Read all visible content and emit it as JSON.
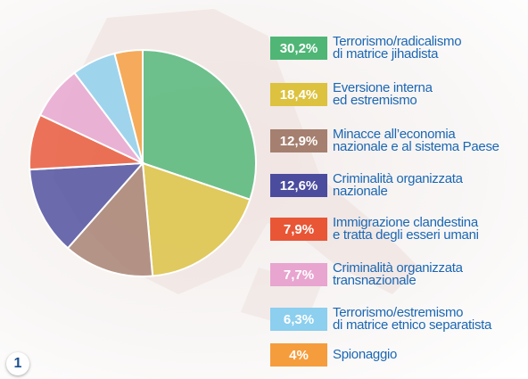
{
  "chart_data": {
    "type": "pie",
    "categories": [
      "Terrorismo/radicalismo\ndi matrice jihadista",
      "Eversione interna\ned estremismo",
      "Minacce all’economia\nnazionale e al sistema Paese",
      "Criminalità organizzata\nnazionale",
      "Immigrazione clandestina\ne tratta degli esseri umani",
      "Criminalità organizzata\ntransnazionale",
      "Terrorismo/estremismo\ndi matrice etnico separatista",
      "Spionaggio"
    ],
    "values": [
      30.2,
      18.4,
      12.9,
      12.6,
      7.9,
      7.7,
      6.3,
      4
    ],
    "value_labels": [
      "30,2%",
      "18,4%",
      "12,9%",
      "12,6%",
      "7,9%",
      "7,7%",
      "6,3%",
      "4%"
    ],
    "colors": [
      "#4fb676",
      "#dcc23f",
      "#a57f6f",
      "#4b4c9e",
      "#e85636",
      "#e7a5cf",
      "#8ccfee",
      "#f59d3c"
    ],
    "badge": "1"
  }
}
